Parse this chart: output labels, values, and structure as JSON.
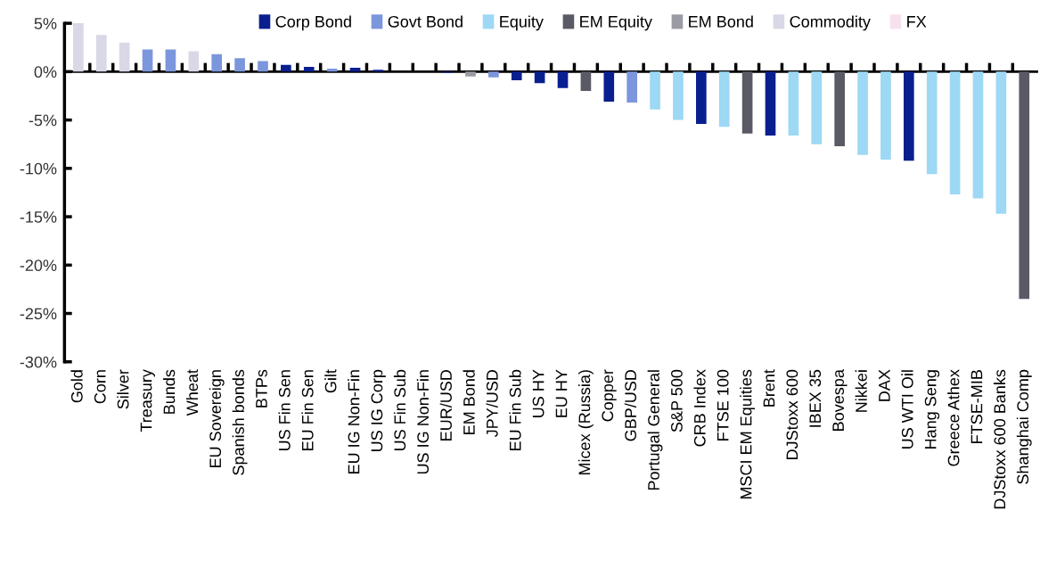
{
  "chart_data": {
    "type": "bar",
    "legend": "top",
    "categories": [
      "Gold",
      "Corn",
      "Silver",
      "Treasury",
      "Bunds",
      "Wheat",
      "EU Sovereign",
      "Spanish bonds",
      "BTPs",
      "US Fin Sen",
      "EU Fin Sen",
      "Gilt",
      "EU IG Non-Fin",
      "US IG Corp",
      "US Fin Sub",
      "US IG Non-Fin",
      "EUR/USD",
      "EM Bond",
      "JPY/USD",
      "EU Fin Sub",
      "US HY",
      "EU HY",
      "Micex (Russia)",
      "Copper",
      "GBP/USD",
      "Portugal General",
      "S&P 500",
      "CRB Index",
      "FTSE 100",
      "MSCI EM Equities",
      "Brent",
      "DJStoxx 600",
      "IBEX 35",
      "Bovespa",
      "Nikkei",
      "DAX",
      "US WTI Oil",
      "Hang Seng",
      "Greece Athex",
      "FTSE-MIB",
      "DJStoxx 600 Banks",
      "Shanghai Comp"
    ],
    "ylim": [
      -30,
      5
    ],
    "yticks": [
      {
        "value": -30,
        "label": "-30%"
      },
      {
        "value": -25,
        "label": "-25%"
      },
      {
        "value": -20,
        "label": "-20%"
      },
      {
        "value": -15,
        "label": "-15%"
      },
      {
        "value": -10,
        "label": "-10%"
      },
      {
        "value": -5,
        "label": "-5%"
      },
      {
        "value": 0,
        "label": "0%"
      },
      {
        "value": 5,
        "label": "5%"
      }
    ],
    "series": [
      {
        "name": "Corp Bond",
        "color": "#0a1f8f",
        "values": [
          null,
          null,
          null,
          null,
          null,
          null,
          null,
          null,
          null,
          0.7,
          0.5,
          null,
          0.4,
          0.2,
          null,
          null,
          -0.1,
          null,
          null,
          -0.9,
          -1.2,
          -1.7,
          null,
          -3.1,
          null,
          null,
          null,
          -5.4,
          null,
          null,
          -6.6,
          null,
          null,
          null,
          null,
          null,
          -9.2,
          null,
          null,
          null,
          null,
          null
        ]
      },
      {
        "name": "Govt Bond",
        "color": "#7b96dc",
        "values": [
          null,
          null,
          null,
          2.3,
          2.3,
          null,
          1.8,
          1.4,
          1.1,
          null,
          null,
          0.3,
          null,
          null,
          null,
          null,
          null,
          null,
          -0.6,
          null,
          null,
          null,
          null,
          null,
          -3.2,
          null,
          null,
          null,
          null,
          null,
          null,
          null,
          null,
          null,
          null,
          null,
          null,
          null,
          null,
          null,
          null,
          null
        ]
      },
      {
        "name": "Equity",
        "color": "#9dd8f4",
        "values": [
          null,
          null,
          null,
          null,
          null,
          null,
          null,
          null,
          null,
          null,
          null,
          null,
          null,
          null,
          null,
          null,
          null,
          null,
          null,
          null,
          null,
          null,
          null,
          null,
          null,
          -3.9,
          -5.0,
          null,
          -5.7,
          null,
          null,
          -6.6,
          -7.5,
          null,
          -8.6,
          -9.1,
          null,
          -10.6,
          -12.7,
          -13.1,
          -14.7,
          null
        ]
      },
      {
        "name": "EM Equity",
        "color": "#5a5a66",
        "values": [
          null,
          null,
          null,
          null,
          null,
          null,
          null,
          null,
          null,
          null,
          null,
          null,
          null,
          null,
          null,
          null,
          null,
          null,
          null,
          null,
          null,
          null,
          -2.0,
          null,
          null,
          null,
          null,
          null,
          null,
          -6.4,
          null,
          null,
          null,
          -7.7,
          null,
          null,
          null,
          null,
          null,
          null,
          null,
          -23.5
        ]
      },
      {
        "name": "EM Bond",
        "color": "#9b9ba3",
        "values": [
          null,
          null,
          null,
          null,
          null,
          null,
          null,
          null,
          null,
          null,
          null,
          null,
          null,
          null,
          null,
          null,
          null,
          -0.5,
          null,
          null,
          null,
          null,
          null,
          null,
          null,
          null,
          null,
          null,
          null,
          null,
          null,
          null,
          null,
          null,
          null,
          null,
          null,
          null,
          null,
          null,
          null,
          null
        ]
      },
      {
        "name": "Commodity",
        "color": "#d8d8e6",
        "values": [
          5.0,
          3.8,
          3.0,
          null,
          null,
          2.1,
          null,
          null,
          null,
          null,
          null,
          null,
          null,
          null,
          null,
          null,
          null,
          null,
          null,
          null,
          null,
          null,
          null,
          null,
          null,
          null,
          null,
          null,
          null,
          null,
          null,
          null,
          null,
          null,
          null,
          null,
          null,
          null,
          null,
          null,
          null,
          null
        ]
      },
      {
        "name": "FX",
        "color": "#f7e1ef",
        "values": [
          null,
          null,
          null,
          null,
          null,
          null,
          null,
          null,
          null,
          null,
          null,
          null,
          null,
          null,
          null,
          null,
          null,
          null,
          null,
          null,
          null,
          null,
          null,
          null,
          null,
          null,
          null,
          null,
          null,
          null,
          null,
          null,
          null,
          null,
          null,
          null,
          null,
          null,
          null,
          null,
          null,
          null
        ]
      }
    ]
  }
}
